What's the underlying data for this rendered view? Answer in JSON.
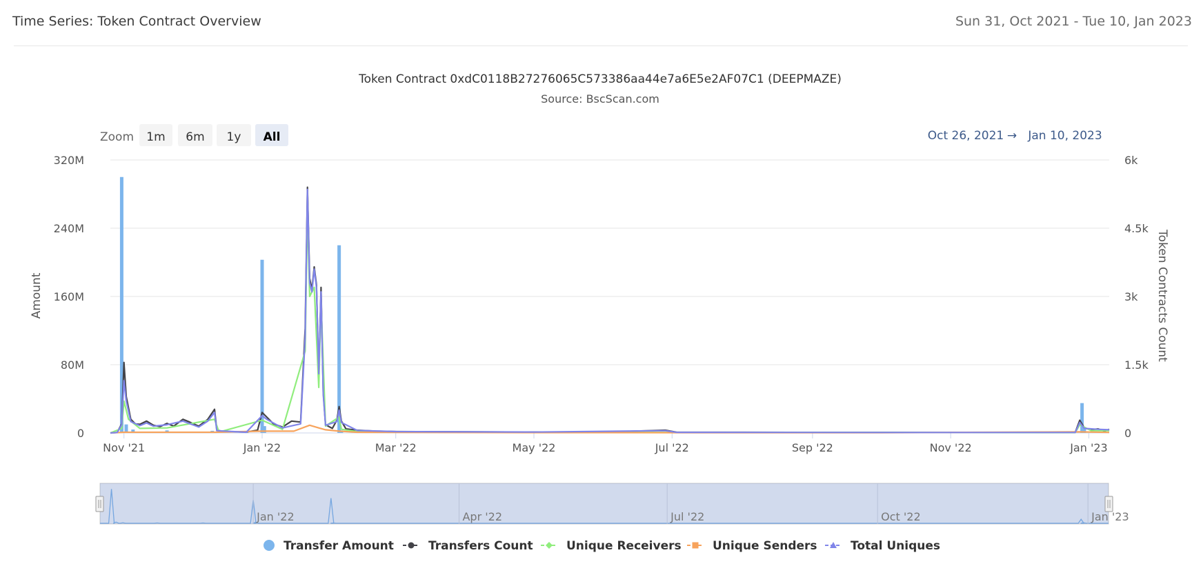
{
  "header": {
    "title": "Time Series: Token Contract Overview",
    "date_range": "Sun 31, Oct 2021 - Tue 10, Jan 2023"
  },
  "range_selector": {
    "zoom_label": "Zoom",
    "buttons": [
      "1m",
      "6m",
      "1y",
      "All"
    ],
    "selected": "All",
    "from": "Oct 26, 2021",
    "arrow": "→",
    "to": "Jan 10, 2023"
  },
  "chart_data": {
    "type": "line",
    "title": "Token Contract 0xdC0118B27276065C573386aa44e7a6E5e2AF07C1 (DEEPMAZE)",
    "subtitle": "Source: BscScan.com",
    "x_range": [
      "2021-10-26",
      "2023-01-10"
    ],
    "x_ticks": [
      {
        "date": "2021-11-01",
        "label": "Nov '21"
      },
      {
        "date": "2022-01-01",
        "label": "Jan '22"
      },
      {
        "date": "2022-03-01",
        "label": "Mar '22"
      },
      {
        "date": "2022-05-01",
        "label": "May '22"
      },
      {
        "date": "2022-07-01",
        "label": "Jul '22"
      },
      {
        "date": "2022-09-01",
        "label": "Sep '22"
      },
      {
        "date": "2022-11-01",
        "label": "Nov '22"
      },
      {
        "date": "2023-01-01",
        "label": "Jan '23"
      }
    ],
    "y_left": {
      "label": "Amount",
      "min": 0,
      "max": 320000000,
      "ticks": [
        {
          "value": 0,
          "label": "0"
        },
        {
          "value": 80000000,
          "label": "80M"
        },
        {
          "value": 160000000,
          "label": "160M"
        },
        {
          "value": 240000000,
          "label": "240M"
        },
        {
          "value": 320000000,
          "label": "320M"
        }
      ]
    },
    "y_right": {
      "label": "Token Contracts Count",
      "min": 0,
      "max": 6000,
      "ticks": [
        {
          "value": 0,
          "label": "0"
        },
        {
          "value": 1500,
          "label": "1.5k"
        },
        {
          "value": 3000,
          "label": "3k"
        },
        {
          "value": 4500,
          "label": "4.5k"
        },
        {
          "value": 6000,
          "label": "6k"
        }
      ]
    },
    "grid": true,
    "legend_position": "bottom-center",
    "navigator_ticks": [
      {
        "date": "2022-01-01",
        "label": "Jan '22"
      },
      {
        "date": "2022-04-01",
        "label": "Apr '22"
      },
      {
        "date": "2022-07-01",
        "label": "Jul '22"
      },
      {
        "date": "2022-10-01",
        "label": "Oct '22"
      },
      {
        "date": "2023-01-01",
        "label": "Jan '23"
      }
    ],
    "series": [
      {
        "name": "Transfer Amount",
        "type": "column",
        "axis": "left",
        "color": "#7cb5ec",
        "points": [
          [
            "2021-10-31",
            300000000
          ],
          [
            "2021-11-02",
            10000000
          ],
          [
            "2021-11-05",
            4000000
          ],
          [
            "2021-11-20",
            3000000
          ],
          [
            "2021-12-10",
            2500000
          ],
          [
            "2022-01-01",
            203000000
          ],
          [
            "2022-01-02",
            8000000
          ],
          [
            "2022-02-04",
            220000000
          ],
          [
            "2022-02-05",
            3000000
          ],
          [
            "2022-12-29",
            35000000
          ],
          [
            "2022-12-30",
            5000000
          ]
        ]
      },
      {
        "name": "Transfers Count",
        "type": "line",
        "axis": "right",
        "color": "#434348",
        "points": [
          [
            "2021-10-26",
            0
          ],
          [
            "2021-10-29",
            10
          ],
          [
            "2021-10-31",
            200
          ],
          [
            "2021-11-01",
            1550
          ],
          [
            "2021-11-02",
            800
          ],
          [
            "2021-11-04",
            300
          ],
          [
            "2021-11-06",
            200
          ],
          [
            "2021-11-08",
            190
          ],
          [
            "2021-11-11",
            260
          ],
          [
            "2021-11-14",
            170
          ],
          [
            "2021-11-17",
            140
          ],
          [
            "2021-11-20",
            210
          ],
          [
            "2021-11-23",
            150
          ],
          [
            "2021-11-27",
            300
          ],
          [
            "2021-11-30",
            240
          ],
          [
            "2021-12-04",
            150
          ],
          [
            "2021-12-08",
            300
          ],
          [
            "2021-12-11",
            520
          ],
          [
            "2021-12-12",
            60
          ],
          [
            "2021-12-15",
            30
          ],
          [
            "2021-12-25",
            20
          ],
          [
            "2021-12-30",
            60
          ],
          [
            "2022-01-01",
            450
          ],
          [
            "2022-01-03",
            350
          ],
          [
            "2022-01-06",
            200
          ],
          [
            "2022-01-10",
            130
          ],
          [
            "2022-01-14",
            260
          ],
          [
            "2022-01-18",
            240
          ],
          [
            "2022-01-20",
            2300
          ],
          [
            "2022-01-21",
            5400
          ],
          [
            "2022-01-22",
            3400
          ],
          [
            "2022-01-23",
            3150
          ],
          [
            "2022-01-24",
            3650
          ],
          [
            "2022-01-25",
            3250
          ],
          [
            "2022-01-26",
            1200
          ],
          [
            "2022-01-27",
            3200
          ],
          [
            "2022-01-28",
            900
          ],
          [
            "2022-01-29",
            180
          ],
          [
            "2022-02-01",
            100
          ],
          [
            "2022-02-03",
            280
          ],
          [
            "2022-02-04",
            580
          ],
          [
            "2022-02-05",
            260
          ],
          [
            "2022-02-07",
            90
          ],
          [
            "2022-02-12",
            60
          ],
          [
            "2022-02-20",
            40
          ],
          [
            "2022-03-01",
            30
          ],
          [
            "2022-04-01",
            25
          ],
          [
            "2022-05-01",
            20
          ],
          [
            "2022-06-01",
            18
          ],
          [
            "2022-06-28",
            60
          ],
          [
            "2022-07-03",
            15
          ],
          [
            "2022-08-01",
            15
          ],
          [
            "2022-09-01",
            12
          ],
          [
            "2022-10-01",
            12
          ],
          [
            "2022-11-01",
            10
          ],
          [
            "2022-12-01",
            10
          ],
          [
            "2022-12-26",
            10
          ],
          [
            "2022-12-28",
            280
          ],
          [
            "2022-12-30",
            110
          ],
          [
            "2023-01-02",
            70
          ],
          [
            "2023-01-05",
            90
          ],
          [
            "2023-01-08",
            40
          ],
          [
            "2023-01-10",
            80
          ]
        ]
      },
      {
        "name": "Unique Receivers",
        "type": "line",
        "axis": "right",
        "color": "#90ed7d",
        "points": [
          [
            "2021-10-26",
            0
          ],
          [
            "2021-10-31",
            100
          ],
          [
            "2021-11-01",
            700
          ],
          [
            "2021-11-03",
            300
          ],
          [
            "2021-11-08",
            100
          ],
          [
            "2021-11-20",
            110
          ],
          [
            "2021-12-11",
            300
          ],
          [
            "2021-12-13",
            20
          ],
          [
            "2022-01-01",
            280
          ],
          [
            "2022-01-10",
            80
          ],
          [
            "2022-01-20",
            1800
          ],
          [
            "2022-01-21",
            4900
          ],
          [
            "2022-01-22",
            3000
          ],
          [
            "2022-01-24",
            3200
          ],
          [
            "2022-01-26",
            1000
          ],
          [
            "2022-01-27",
            2900
          ],
          [
            "2022-01-29",
            150
          ],
          [
            "2022-02-04",
            350
          ],
          [
            "2022-02-05",
            80
          ],
          [
            "2022-02-12",
            30
          ],
          [
            "2022-04-01",
            15
          ],
          [
            "2022-07-01",
            12
          ],
          [
            "2022-10-01",
            10
          ],
          [
            "2022-12-26",
            8
          ],
          [
            "2022-12-28",
            180
          ],
          [
            "2023-01-02",
            50
          ],
          [
            "2023-01-10",
            50
          ]
        ]
      },
      {
        "name": "Unique Senders",
        "type": "line",
        "axis": "right",
        "color": "#f7a35c",
        "points": [
          [
            "2021-10-26",
            0
          ],
          [
            "2021-11-01",
            15
          ],
          [
            "2021-12-11",
            15
          ],
          [
            "2022-01-01",
            40
          ],
          [
            "2022-01-15",
            40
          ],
          [
            "2022-01-22",
            170
          ],
          [
            "2022-01-26",
            110
          ],
          [
            "2022-01-29",
            70
          ],
          [
            "2022-02-04",
            40
          ],
          [
            "2022-02-12",
            15
          ],
          [
            "2022-05-01",
            8
          ],
          [
            "2022-10-01",
            5
          ],
          [
            "2022-12-28",
            25
          ],
          [
            "2023-01-10",
            12
          ]
        ]
      },
      {
        "name": "Total Uniques",
        "type": "line",
        "axis": "right",
        "color": "#8085e9",
        "points": [
          [
            "2021-10-26",
            0
          ],
          [
            "2021-10-29",
            10
          ],
          [
            "2021-10-31",
            180
          ],
          [
            "2021-11-01",
            1150
          ],
          [
            "2021-11-02",
            700
          ],
          [
            "2021-11-04",
            250
          ],
          [
            "2021-11-08",
            160
          ],
          [
            "2021-11-11",
            220
          ],
          [
            "2021-11-14",
            150
          ],
          [
            "2021-11-20",
            180
          ],
          [
            "2021-11-27",
            260
          ],
          [
            "2021-12-04",
            130
          ],
          [
            "2021-12-08",
            260
          ],
          [
            "2021-12-11",
            450
          ],
          [
            "2021-12-12",
            50
          ],
          [
            "2021-12-25",
            15
          ],
          [
            "2022-01-01",
            380
          ],
          [
            "2022-01-03",
            300
          ],
          [
            "2022-01-10",
            110
          ],
          [
            "2022-01-18",
            200
          ],
          [
            "2022-01-20",
            2100
          ],
          [
            "2022-01-21",
            5350
          ],
          [
            "2022-01-22",
            3300
          ],
          [
            "2022-01-23",
            3100
          ],
          [
            "2022-01-24",
            3600
          ],
          [
            "2022-01-25",
            3200
          ],
          [
            "2022-01-26",
            1300
          ],
          [
            "2022-01-27",
            3100
          ],
          [
            "2022-01-28",
            850
          ],
          [
            "2022-01-29",
            170
          ],
          [
            "2022-02-03",
            250
          ],
          [
            "2022-02-04",
            500
          ],
          [
            "2022-02-05",
            230
          ],
          [
            "2022-02-12",
            55
          ],
          [
            "2022-03-01",
            30
          ],
          [
            "2022-05-01",
            20
          ],
          [
            "2022-06-28",
            50
          ],
          [
            "2022-07-03",
            14
          ],
          [
            "2022-10-01",
            11
          ],
          [
            "2022-12-26",
            10
          ],
          [
            "2022-12-28",
            230
          ],
          [
            "2022-12-30",
            100
          ],
          [
            "2023-01-05",
            80
          ],
          [
            "2023-01-10",
            70
          ]
        ]
      }
    ]
  }
}
